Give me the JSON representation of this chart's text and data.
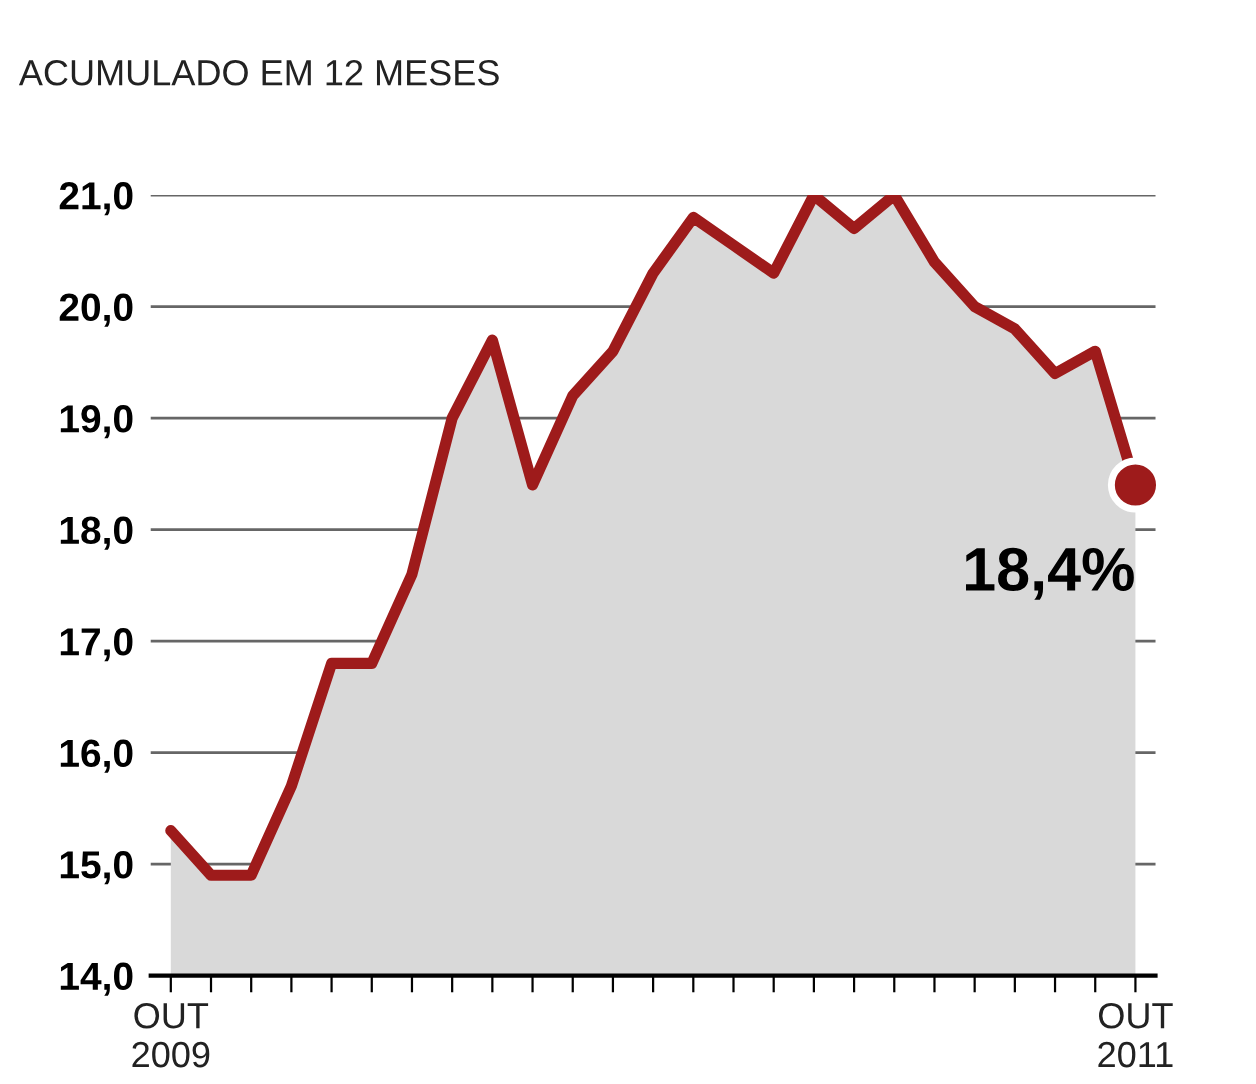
{
  "chart_data": {
    "type": "area",
    "title": "ACUMULADO EM 12 MESES",
    "categories": [
      "OUT\n2009",
      null,
      null,
      null,
      null,
      null,
      null,
      null,
      null,
      null,
      null,
      null,
      null,
      null,
      null,
      null,
      null,
      null,
      null,
      null,
      null,
      null,
      null,
      null,
      "OUT\n2011"
    ],
    "series": [
      {
        "color": "#9e1b1b",
        "values": [
          15.3,
          14.9,
          14.9,
          15.7,
          16.8,
          16.8,
          17.6,
          19.0,
          19.7,
          18.4,
          19.2,
          19.6,
          20.3,
          20.8,
          20.55,
          20.3,
          21.0,
          20.7,
          21.0,
          20.4,
          20.0,
          19.8,
          19.4,
          19.6,
          18.4
        ]
      },
      {
        "type": "scatter",
        "color": "#9e1b1b",
        "values": [
          null,
          null,
          null,
          null,
          null,
          null,
          null,
          null,
          null,
          null,
          null,
          null,
          null,
          null,
          null,
          null,
          null,
          null,
          null,
          null,
          null,
          null,
          null,
          null,
          18.4
        ],
        "value_labels": [
          null,
          null,
          null,
          null,
          null,
          null,
          null,
          null,
          null,
          null,
          null,
          null,
          null,
          null,
          null,
          null,
          null,
          null,
          null,
          null,
          null,
          null,
          null,
          null,
          "18,4%"
        ]
      }
    ],
    "ylim": [
      14,
      21
    ],
    "yticks": [
      {
        "value": 14,
        "label": "14,0"
      },
      {
        "value": 15,
        "label": "15,0"
      },
      {
        "value": 16,
        "label": "16,0"
      },
      {
        "value": 17,
        "label": "17,0"
      },
      {
        "value": 18,
        "label": "18,0"
      },
      {
        "value": 19,
        "label": "19,0"
      },
      {
        "value": 20,
        "label": "20,0"
      },
      {
        "value": 21,
        "label": "21,0"
      }
    ],
    "grid": "y",
    "legend": false
  }
}
